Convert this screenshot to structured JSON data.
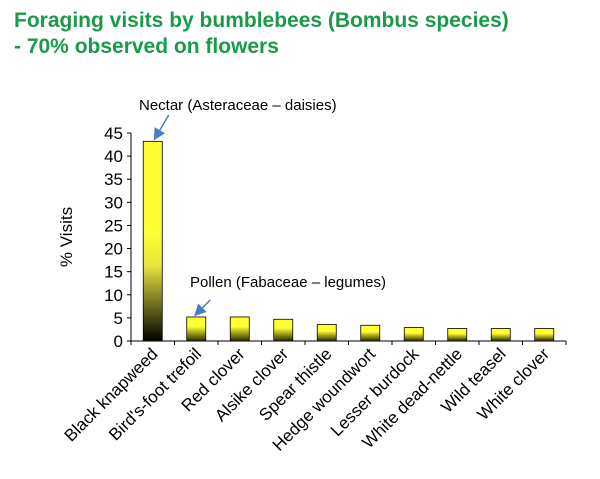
{
  "title_line1": "Foraging visits by bumblebees (Bombus species)",
  "title_line2": "- 70% observed on flowers",
  "chart_data": {
    "type": "bar",
    "title": "Foraging visits by bumblebees (Bombus species) - 70% observed on flowers",
    "ylabel": "% Visits",
    "xlabel": "",
    "ylim": [
      0,
      45
    ],
    "yticks": [
      0,
      5,
      10,
      15,
      20,
      25,
      30,
      35,
      40,
      45
    ],
    "grid": false,
    "categories": [
      "Black knapweed",
      "Bird's-foot trefoil",
      "Red clover",
      "Alsike clover",
      "Spear thistle",
      "Hedge woundwort",
      "Lesser burdock",
      "White dead-nettle",
      "Wild teasel",
      "White clover"
    ],
    "values": [
      43.2,
      5.2,
      5.2,
      4.7,
      3.6,
      3.4,
      2.9,
      2.7,
      2.7,
      2.7
    ],
    "annotations": [
      {
        "text": "Nectar (Asteraceae – daisies)",
        "category": "Black knapweed"
      },
      {
        "text": "Pollen (Fabaceae – legumes)",
        "category": "Bird's-foot trefoil"
      }
    ],
    "colors": {
      "bar_top": "#ffff33",
      "bar_bottom": "#000000",
      "title": "#1a9a4a",
      "arrow": "#4a7ec4"
    }
  }
}
